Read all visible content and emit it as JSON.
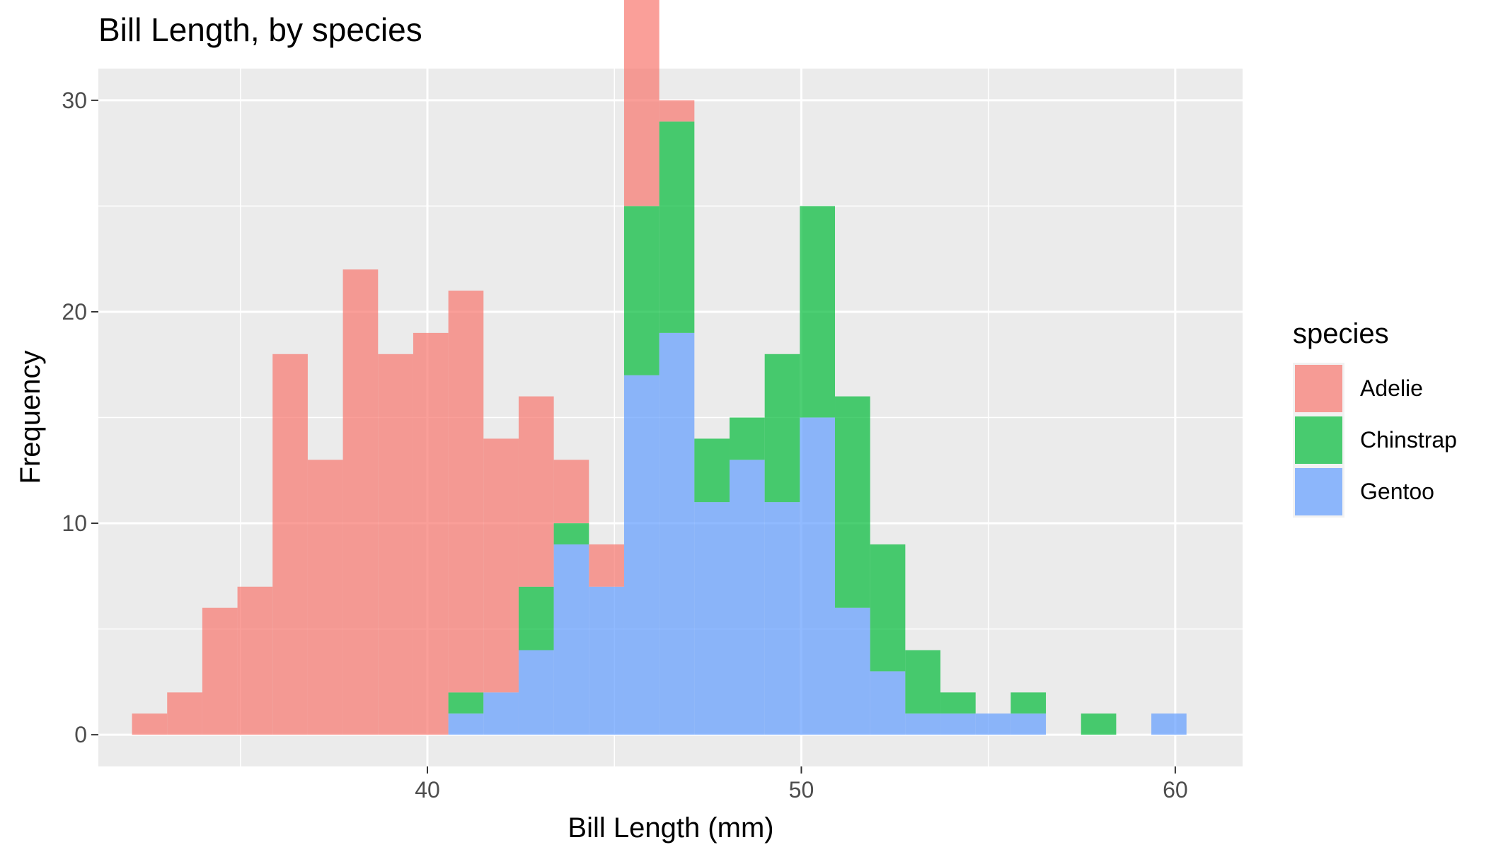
{
  "chart_data": {
    "type": "bar",
    "subtype": "stacked-histogram",
    "title": "Bill Length, by species",
    "xlabel": "Bill Length (mm)",
    "ylabel": "Frequency",
    "xlim": [
      31.2,
      61.8
    ],
    "ylim": [
      -1.5,
      31.5
    ],
    "x_ticks": [
      40,
      50,
      60
    ],
    "y_ticks": [
      0,
      10,
      20,
      30
    ],
    "grid": true,
    "legend_position": "right",
    "bin_width": 0.94,
    "bin_starts": [
      32.1,
      33.04,
      33.98,
      34.92,
      35.86,
      36.8,
      37.74,
      38.68,
      39.62,
      40.56,
      41.5,
      42.44,
      43.38,
      44.32,
      45.26,
      46.2,
      47.14,
      48.08,
      49.02,
      49.96,
      50.9,
      51.84,
      52.78,
      53.72,
      54.66,
      55.6,
      56.54,
      57.48,
      58.42,
      59.36
    ],
    "legend": {
      "title": "species",
      "items": [
        "Adelie",
        "Chinstrap",
        "Gentoo"
      ]
    },
    "series": [
      {
        "name": "Adelie",
        "color": "#F8766D",
        "values": [
          1,
          2,
          6,
          7,
          18,
          13,
          22,
          18,
          19,
          19,
          12,
          9,
          3,
          2,
          10,
          1,
          0,
          0,
          0,
          0,
          0,
          0,
          0,
          0,
          0,
          0,
          0,
          0,
          0,
          0
        ]
      },
      {
        "name": "Chinstrap",
        "color": "#00BA38",
        "values": [
          0,
          0,
          0,
          0,
          0,
          0,
          0,
          0,
          0,
          1,
          0,
          3,
          1,
          0,
          8,
          10,
          3,
          2,
          7,
          10,
          10,
          6,
          3,
          1,
          0,
          1,
          0,
          1,
          0,
          0
        ]
      },
      {
        "name": "Gentoo",
        "color": "#619CFF",
        "values": [
          0,
          0,
          0,
          0,
          0,
          0,
          0,
          0,
          0,
          1,
          2,
          4,
          9,
          7,
          17,
          19,
          11,
          13,
          11,
          15,
          6,
          3,
          1,
          1,
          1,
          1,
          0,
          0,
          0,
          1
        ]
      }
    ]
  }
}
